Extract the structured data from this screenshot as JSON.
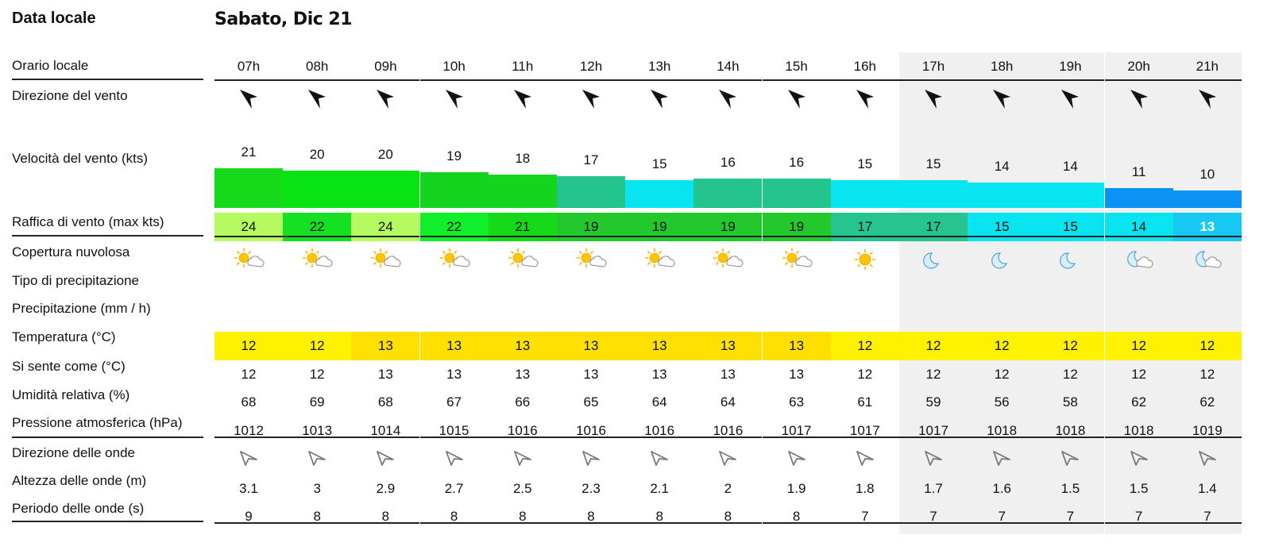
{
  "labels": {
    "local_date": "Data locale",
    "local_time": "Orario locale",
    "wind_direction": "Direzione del vento",
    "wind_speed": "Velocità del vento (kts)",
    "wind_gust": "Raffica di vento (max kts)",
    "cloud_cover": "Copertura nuvolosa",
    "precip_type": "Tipo di precipitazione",
    "precip": "Precipitazione (mm / h)",
    "temperature": "Temperatura (°C)",
    "feels_like": "Si sente come (°C)",
    "humidity": "Umidità relativa (%)",
    "pressure": "Pressione atmosferica (hPa)",
    "wave_direction": "Direzione delle onde",
    "wave_height": "Altezza delle onde (m)",
    "wave_period": "Periodo delle onde (s)"
  },
  "day_title": "Sabato, Dic 21",
  "hours": [
    "07h",
    "08h",
    "09h",
    "10h",
    "11h",
    "12h",
    "13h",
    "14h",
    "15h",
    "16h",
    "17h",
    "18h",
    "19h",
    "20h",
    "21h"
  ],
  "night_columns": [
    10,
    11,
    12,
    13,
    14
  ],
  "wind_speed": [
    "21",
    "20",
    "20",
    "19",
    "18",
    "17",
    "15",
    "16",
    "16",
    "15",
    "15",
    "14",
    "14",
    "11",
    "10"
  ],
  "wind_speed_colors": [
    "#16d91a",
    "#08e412",
    "#08e412",
    "#14d41e",
    "#14d41e",
    "#24c48f",
    "#08e4f0",
    "#24c48f",
    "#24c48f",
    "#08e4f0",
    "#08e4f0",
    "#08e4f0",
    "#08e4f0",
    "#0a93f5",
    "#0a93f5"
  ],
  "wind_gust": [
    "24",
    "22",
    "24",
    "22",
    "21",
    "19",
    "19",
    "19",
    "19",
    "17",
    "17",
    "15",
    "15",
    "14",
    "13"
  ],
  "wind_gust_colors": [
    "#b6fa62",
    "#16e024",
    "#b6fa62",
    "#10f02a",
    "#16d91a",
    "#22c82c",
    "#22c82c",
    "#22c82c",
    "#22c82c",
    "#26c48e",
    "#26c48e",
    "#08e4f0",
    "#08e4f0",
    "#08e4f0",
    "#18c8f4"
  ],
  "cloud_icons": [
    "sun-cloud-icon",
    "sun-cloud-icon",
    "sun-cloud-icon",
    "sun-cloud-icon",
    "sun-cloud-icon",
    "sun-cloud-icon",
    "sun-cloud-icon",
    "sun-cloud-icon",
    "sun-cloud-icon",
    "sun-icon",
    "moon-icon",
    "moon-icon",
    "moon-icon",
    "moon-cloud-icon",
    "moon-cloud-icon"
  ],
  "temperature": [
    "12",
    "12",
    "13",
    "13",
    "13",
    "13",
    "13",
    "13",
    "13",
    "12",
    "12",
    "12",
    "12",
    "12",
    "12"
  ],
  "temperature_colors": [
    "#fff200",
    "#fff200",
    "#ffe000",
    "#ffe000",
    "#ffe000",
    "#ffe000",
    "#ffe000",
    "#ffe000",
    "#ffe000",
    "#fff200",
    "#fff200",
    "#fff200",
    "#fff200",
    "#fff200",
    "#fff200"
  ],
  "feels_like": [
    "12",
    "12",
    "13",
    "13",
    "13",
    "13",
    "13",
    "13",
    "13",
    "12",
    "12",
    "12",
    "12",
    "12",
    "12"
  ],
  "humidity": [
    "68",
    "69",
    "68",
    "67",
    "66",
    "65",
    "64",
    "64",
    "63",
    "61",
    "59",
    "56",
    "58",
    "62",
    "62"
  ],
  "pressure": [
    "1012",
    "1013",
    "1014",
    "1015",
    "1016",
    "1016",
    "1016",
    "1016",
    "1017",
    "1017",
    "1017",
    "1018",
    "1018",
    "1018",
    "1019"
  ],
  "wave_height": [
    "3.1",
    "3",
    "2.9",
    "2.7",
    "2.5",
    "2.3",
    "2.1",
    "2",
    "1.9",
    "1.8",
    "1.7",
    "1.6",
    "1.5",
    "1.5",
    "1.4"
  ],
  "wave_period": [
    "9",
    "8",
    "8",
    "8",
    "8",
    "8",
    "8",
    "8",
    "8",
    "7",
    "7",
    "7",
    "7",
    "7",
    "7"
  ]
}
